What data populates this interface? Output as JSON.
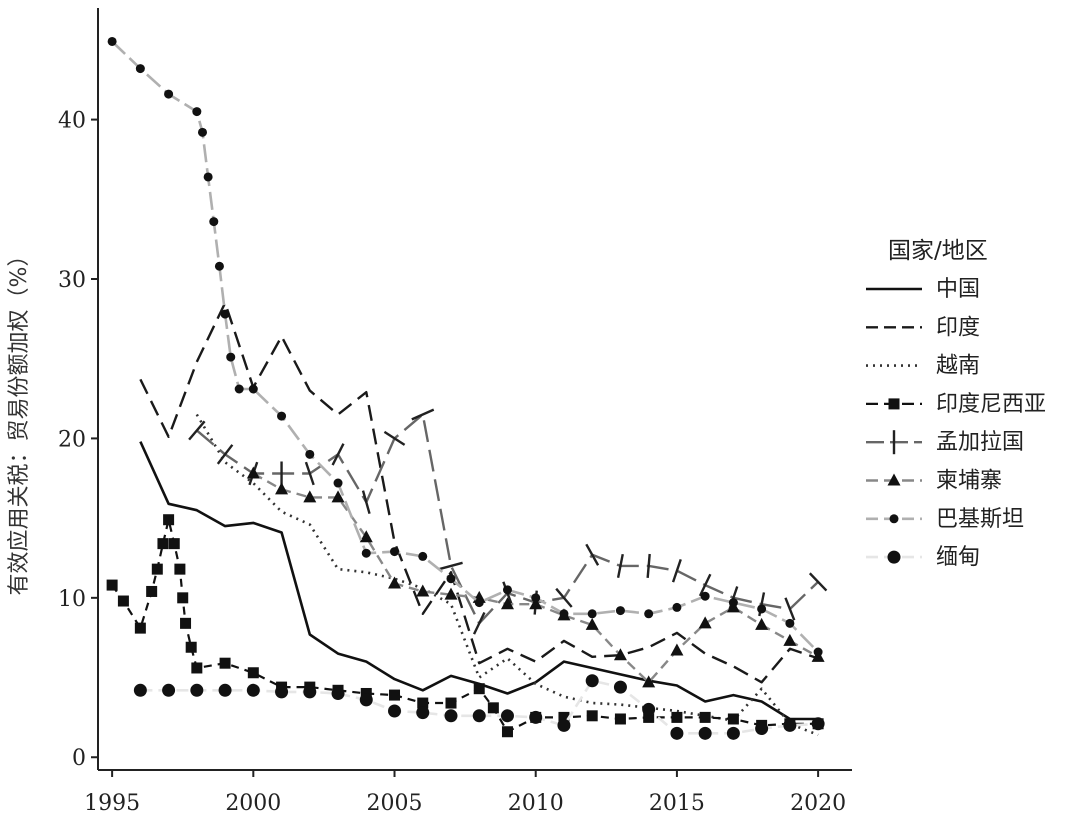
{
  "chart_data": {
    "type": "line",
    "title": "",
    "xlabel": "",
    "ylabel": "有效应用关税：贸易份额加权（%）",
    "xlim": [
      1994.5,
      2021.2
    ],
    "ylim": [
      -0.8,
      47
    ],
    "xticks": [
      1995,
      2000,
      2005,
      2010,
      2015,
      2020
    ],
    "yticks": [
      0,
      10,
      20,
      30,
      40
    ],
    "grid": false,
    "legend": {
      "title": "国家/地区",
      "position": "right"
    },
    "series": [
      {
        "name": "中国",
        "color": "#111111",
        "dash": "",
        "width": 2.6,
        "marker": "none",
        "points": [
          [
            1996,
            19.8
          ],
          [
            1997,
            15.9
          ],
          [
            1998,
            15.5
          ],
          [
            1999,
            14.5
          ],
          [
            2000,
            14.7
          ],
          [
            2001,
            14.1
          ],
          [
            2002,
            7.7
          ],
          [
            2003,
            6.5
          ],
          [
            2004,
            6.0
          ],
          [
            2005,
            4.9
          ],
          [
            2006,
            4.2
          ],
          [
            2007,
            5.1
          ],
          [
            2008,
            4.6
          ],
          [
            2009,
            4.0
          ],
          [
            2010,
            4.7
          ],
          [
            2011,
            6.0
          ],
          [
            2012,
            5.6
          ],
          [
            2013,
            5.2
          ],
          [
            2014,
            4.8
          ],
          [
            2015,
            4.5
          ],
          [
            2016,
            3.5
          ],
          [
            2017,
            3.9
          ],
          [
            2018,
            3.5
          ],
          [
            2019,
            2.4
          ],
          [
            2020,
            2.4
          ]
        ]
      },
      {
        "name": "印度",
        "color": "#1a1a1a",
        "dash": "16,8",
        "width": 2.4,
        "marker": "none",
        "points": [
          [
            1996,
            23.7
          ],
          [
            1997,
            20.1
          ],
          [
            1998,
            24.8
          ],
          [
            1999,
            28.5
          ],
          [
            2000,
            23.2
          ],
          [
            2001,
            26.4
          ],
          [
            2002,
            23.0
          ],
          [
            2003,
            21.5
          ],
          [
            2004,
            22.9
          ],
          [
            2005,
            13.5
          ],
          [
            2006,
            9.0
          ],
          [
            2007,
            11.6
          ],
          [
            2008,
            5.9
          ],
          [
            2009,
            6.8
          ],
          [
            2010,
            6.0
          ],
          [
            2011,
            7.3
          ],
          [
            2012,
            6.3
          ],
          [
            2013,
            6.4
          ],
          [
            2014,
            6.9
          ],
          [
            2015,
            7.8
          ],
          [
            2016,
            6.5
          ],
          [
            2017,
            5.7
          ],
          [
            2018,
            4.7
          ],
          [
            2019,
            6.8
          ],
          [
            2020,
            6.2
          ]
        ]
      },
      {
        "name": "越南",
        "color": "#333333",
        "dash": "2,5",
        "width": 2.6,
        "marker": "none",
        "points": [
          [
            1998,
            21.5
          ],
          [
            1999,
            18.5
          ],
          [
            2000,
            17.2
          ],
          [
            2001,
            15.4
          ],
          [
            2002,
            14.6
          ],
          [
            2003,
            11.8
          ],
          [
            2004,
            11.6
          ],
          [
            2005,
            11.2
          ],
          [
            2006,
            10.6
          ],
          [
            2007,
            9.6
          ],
          [
            2008,
            5.0
          ],
          [
            2009,
            6.2
          ],
          [
            2010,
            4.6
          ],
          [
            2011,
            3.8
          ],
          [
            2012,
            3.4
          ],
          [
            2013,
            3.3
          ],
          [
            2014,
            3.1
          ],
          [
            2015,
            2.9
          ],
          [
            2016,
            2.6
          ],
          [
            2017,
            2.3
          ],
          [
            2018,
            4.3
          ],
          [
            2019,
            2.1
          ],
          [
            2020,
            1.4
          ]
        ]
      },
      {
        "name": "印度尼西亚",
        "color": "#111111",
        "dash": "8,6",
        "width": 2.2,
        "marker": "square",
        "points": [
          [
            1995,
            10.8
          ],
          [
            1995.4,
            9.8
          ],
          [
            1996,
            8.1
          ],
          [
            1996.4,
            10.4
          ],
          [
            1996.6,
            11.8
          ],
          [
            1996.8,
            13.4
          ],
          [
            1997,
            14.9
          ],
          [
            1997.2,
            13.4
          ],
          [
            1997.4,
            11.8
          ],
          [
            1997.5,
            10.0
          ],
          [
            1997.6,
            8.4
          ],
          [
            1997.8,
            6.9
          ],
          [
            1998,
            5.6
          ],
          [
            1999,
            5.9
          ],
          [
            2000,
            5.3
          ],
          [
            2001,
            4.4
          ],
          [
            2002,
            4.4
          ],
          [
            2003,
            4.2
          ],
          [
            2004,
            4.0
          ],
          [
            2005,
            3.9
          ],
          [
            2006,
            3.4
          ],
          [
            2007,
            3.4
          ],
          [
            2008,
            4.3
          ],
          [
            2008.5,
            3.1
          ],
          [
            2009,
            1.6
          ],
          [
            2010,
            2.5
          ],
          [
            2011,
            2.5
          ],
          [
            2012,
            2.6
          ],
          [
            2013,
            2.4
          ],
          [
            2014,
            2.5
          ],
          [
            2015,
            2.5
          ],
          [
            2016,
            2.5
          ],
          [
            2017,
            2.4
          ],
          [
            2018,
            2.0
          ],
          [
            2019,
            2.1
          ],
          [
            2020,
            2.1
          ]
        ]
      },
      {
        "name": "孟加拉国",
        "color": "#666666",
        "dash": "22,8",
        "width": 2.4,
        "marker": "bar",
        "points": [
          [
            1998,
            20.5
          ],
          [
            1999,
            19.0
          ],
          [
            2000,
            17.8
          ],
          [
            2001,
            17.8
          ],
          [
            2002,
            17.8
          ],
          [
            2003,
            19.0
          ],
          [
            2004,
            16.0
          ],
          [
            2005,
            20.0
          ],
          [
            2006,
            21.5
          ],
          [
            2007,
            12.0
          ],
          [
            2008,
            8.4
          ],
          [
            2009,
            10.3
          ],
          [
            2010,
            9.7
          ],
          [
            2011,
            10.0
          ],
          [
            2012,
            12.7
          ],
          [
            2013,
            12.0
          ],
          [
            2014,
            12.0
          ],
          [
            2015,
            11.7
          ],
          [
            2016,
            10.8
          ],
          [
            2017,
            10.0
          ],
          [
            2018,
            9.6
          ],
          [
            2019,
            9.3
          ],
          [
            2020,
            11.0
          ]
        ]
      },
      {
        "name": "柬埔寨",
        "color": "#888888",
        "dash": "10,6",
        "width": 2.4,
        "marker": "triangle",
        "points": [
          [
            2000,
            17.8
          ],
          [
            2001,
            16.8
          ],
          [
            2002,
            16.3
          ],
          [
            2003,
            16.3
          ],
          [
            2004,
            13.8
          ],
          [
            2005,
            10.9
          ],
          [
            2006,
            10.4
          ],
          [
            2007,
            10.2
          ],
          [
            2008,
            10.0
          ],
          [
            2009,
            9.6
          ],
          [
            2010,
            9.6
          ],
          [
            2011,
            8.9
          ],
          [
            2012,
            8.3
          ],
          [
            2013,
            6.4
          ],
          [
            2014,
            4.7
          ],
          [
            2015,
            6.7
          ],
          [
            2016,
            8.4
          ],
          [
            2017,
            9.4
          ],
          [
            2018,
            8.3
          ],
          [
            2019,
            7.3
          ],
          [
            2020,
            6.3
          ]
        ]
      },
      {
        "name": "巴基斯坦",
        "color": "#b0b0b0",
        "dash": "18,6",
        "width": 2.6,
        "marker": "smalldot",
        "points": [
          [
            1995,
            44.9
          ],
          [
            1996,
            43.2
          ],
          [
            1997,
            41.6
          ],
          [
            1998,
            40.5
          ],
          [
            1998.2,
            39.2
          ],
          [
            1998.4,
            36.4
          ],
          [
            1998.6,
            33.6
          ],
          [
            1998.8,
            30.8
          ],
          [
            1999,
            27.8
          ],
          [
            1999.2,
            25.1
          ],
          [
            1999.5,
            23.1
          ],
          [
            2000,
            23.1
          ],
          [
            2001,
            21.4
          ],
          [
            2002,
            19.0
          ],
          [
            2003,
            17.2
          ],
          [
            2004,
            12.8
          ],
          [
            2005,
            12.9
          ],
          [
            2006,
            12.6
          ],
          [
            2007,
            11.2
          ],
          [
            2008,
            9.7
          ],
          [
            2009,
            10.5
          ],
          [
            2010,
            10.0
          ],
          [
            2011,
            9.0
          ],
          [
            2012,
            9.0
          ],
          [
            2013,
            9.2
          ],
          [
            2014,
            9.0
          ],
          [
            2015,
            9.4
          ],
          [
            2016,
            10.1
          ],
          [
            2017,
            9.7
          ],
          [
            2018,
            9.3
          ],
          [
            2019,
            8.4
          ],
          [
            2020,
            6.6
          ]
        ]
      },
      {
        "name": "缅甸",
        "color": "#e6e6e6",
        "dash": "12,6",
        "width": 2.6,
        "marker": "bigdot",
        "points": [
          [
            1996,
            4.2
          ],
          [
            1997,
            4.2
          ],
          [
            1998,
            4.2
          ],
          [
            1999,
            4.2
          ],
          [
            2000,
            4.2
          ],
          [
            2001,
            4.1
          ],
          [
            2002,
            4.1
          ],
          [
            2003,
            4.0
          ],
          [
            2004,
            3.6
          ],
          [
            2005,
            2.9
          ],
          [
            2006,
            2.8
          ],
          [
            2007,
            2.6
          ],
          [
            2008,
            2.6
          ],
          [
            2009,
            2.6
          ],
          [
            2010,
            2.5
          ],
          [
            2011,
            2.0
          ],
          [
            2012,
            4.8
          ],
          [
            2013,
            4.4
          ],
          [
            2014,
            3.0
          ],
          [
            2015,
            1.5
          ],
          [
            2016,
            1.5
          ],
          [
            2017,
            1.5
          ],
          [
            2018,
            1.8
          ],
          [
            2019,
            2.0
          ],
          [
            2020,
            2.1
          ]
        ]
      }
    ]
  }
}
